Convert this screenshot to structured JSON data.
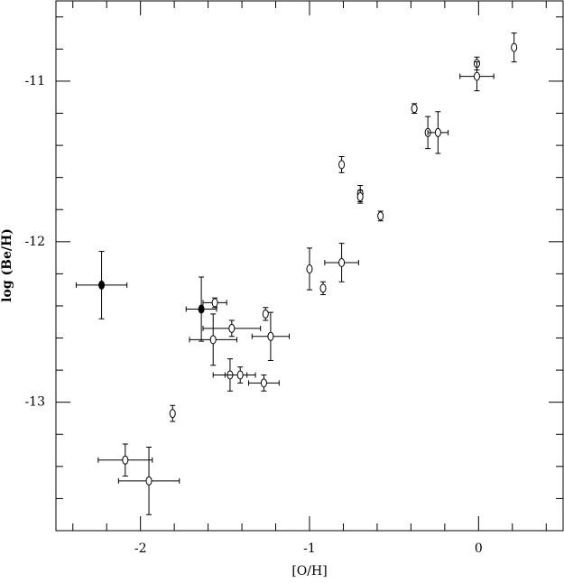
{
  "chart_data": {
    "type": "scatter",
    "x_label": "[O/H]",
    "y_label": "log (Be/H)",
    "xlim": [
      -2.5,
      0.5
    ],
    "ylim": [
      -13.8,
      -10.5
    ],
    "xticks": [
      -2,
      -1,
      0
    ],
    "yticks": [
      -13,
      -12,
      -11
    ],
    "xminor_ticks": [
      -2.4,
      -2.2,
      -1.8,
      -1.6,
      -1.4,
      -1.2,
      -0.8,
      -0.6,
      -0.4,
      -0.2,
      0.2,
      0.4
    ],
    "yminor_ticks": [
      -13.6,
      -13.4,
      -13.2,
      -12.8,
      -12.6,
      -12.4,
      -12.2,
      -11.8,
      -11.6,
      -11.4,
      -11.2,
      -10.8,
      -10.6
    ],
    "series": [
      {
        "color": "#000000",
        "filled": true,
        "x": [
          -2.23,
          -1.64
        ],
        "values": [
          -12.27,
          -12.42
        ],
        "xerr": [
          0.15,
          0.09
        ],
        "yerr": [
          0.21,
          0.2
        ]
      },
      {
        "color": "#000000",
        "filled": false,
        "x": [
          0.21,
          -0.01,
          -0.01,
          -0.38,
          -0.3,
          -0.24,
          -0.81,
          -0.7,
          -0.7,
          -0.58,
          -1.0,
          -0.92,
          -0.81,
          -1.56,
          -1.26,
          -1.46,
          -1.57,
          -1.23,
          -1.47,
          -1.41,
          -1.27,
          -1.81,
          -2.09,
          -1.95
        ],
        "values": [
          -10.79,
          -10.89,
          -10.97,
          -11.17,
          -11.32,
          -11.32,
          -11.52,
          -11.7,
          -11.72,
          -11.84,
          -12.17,
          -12.29,
          -12.13,
          -12.38,
          -12.45,
          -12.54,
          -12.61,
          -12.59,
          -12.83,
          -12.83,
          -12.88,
          -13.07,
          -13.36,
          -13.49
        ],
        "xerr": [
          0,
          0,
          0.1,
          0,
          0,
          0.06,
          0,
          0,
          0,
          0,
          0,
          0,
          0.1,
          0.07,
          0,
          0.17,
          0.14,
          0.11,
          0.1,
          0.09,
          0.09,
          0,
          0.16,
          0.18
        ],
        "yerr": [
          0.09,
          0.04,
          0.09,
          0.03,
          0.1,
          0.13,
          0.05,
          0.05,
          0.04,
          0.03,
          0.13,
          0.04,
          0.12,
          0.03,
          0.04,
          0.05,
          0.16,
          0.15,
          0.1,
          0.05,
          0.05,
          0.05,
          0.1,
          0.21
        ]
      }
    ]
  }
}
